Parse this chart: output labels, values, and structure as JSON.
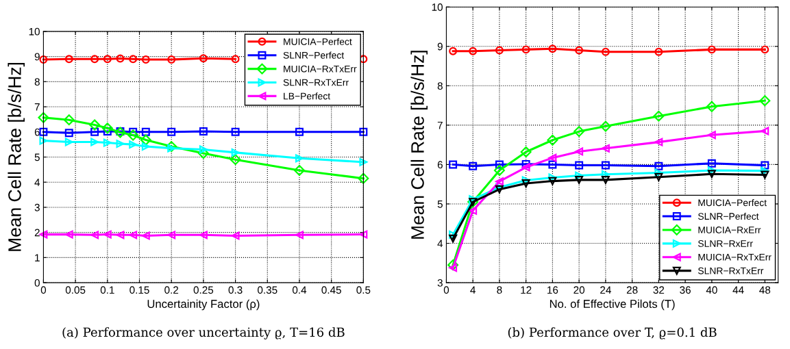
{
  "chart_data": [
    {
      "type": "line",
      "xlabel": "Uncertainity Factor (ρ)",
      "ylabel": "Mean Cell Rate [b/s/Hz]",
      "x": [
        0,
        0.04,
        0.08,
        0.1,
        0.12,
        0.14,
        0.16,
        0.2,
        0.25,
        0.3,
        0.4,
        0.5
      ],
      "xlim": [
        0,
        0.5
      ],
      "xticks": [
        0,
        0.05,
        0.1,
        0.15,
        0.2,
        0.25,
        0.3,
        0.35,
        0.4,
        0.45,
        0.5
      ],
      "ylim": [
        0,
        10
      ],
      "yticks": [
        0,
        1,
        2,
        3,
        4,
        5,
        6,
        7,
        8,
        9,
        10
      ],
      "grid": true,
      "legend": "top right",
      "annotations": [
        "(a) Performance over uncertainty ϱ, T=16 dB"
      ],
      "series": [
        {
          "name": "MUICIA−Perfect",
          "color": "#ff0000",
          "marker": "circle",
          "values": [
            8.88,
            8.9,
            8.9,
            8.9,
            8.92,
            8.9,
            8.88,
            8.88,
            8.93,
            8.9,
            null,
            8.9
          ]
        },
        {
          "name": "SLNR−Perfect",
          "color": "#0000ff",
          "marker": "square",
          "values": [
            6.0,
            5.96,
            6.0,
            6.02,
            6.02,
            6.0,
            6.0,
            6.0,
            6.02,
            6.0,
            6.0,
            6.0
          ]
        },
        {
          "name": "MUICIA−RxTxErr",
          "color": "#00ff00",
          "marker": "diamond",
          "values": [
            6.57,
            6.48,
            6.28,
            6.15,
            5.98,
            5.87,
            5.68,
            5.42,
            5.15,
            4.9,
            4.47,
            4.15
          ]
        },
        {
          "name": "SLNR−RxTxErr",
          "color": "#00ffff",
          "marker": "triangle_right",
          "values": [
            5.65,
            5.6,
            5.6,
            5.57,
            5.53,
            5.5,
            5.42,
            5.35,
            5.3,
            5.18,
            4.95,
            4.8
          ]
        },
        {
          "name": "LB−Perfect",
          "color": "#ff00ff",
          "marker": "triangle_left",
          "values": [
            1.92,
            1.92,
            1.9,
            1.92,
            1.9,
            1.9,
            1.87,
            1.9,
            1.9,
            1.87,
            1.9,
            1.92
          ]
        }
      ]
    },
    {
      "type": "line",
      "xlabel": "No. of Effective Pilots (T)",
      "ylabel": "Mean Cell Rate [b/s/Hz]",
      "x": [
        1,
        4,
        8,
        12,
        16,
        20,
        24,
        32,
        40,
        48
      ],
      "xlim": [
        0,
        50
      ],
      "xticks": [
        0,
        4,
        8,
        12,
        16,
        20,
        24,
        28,
        32,
        36,
        40,
        44,
        48
      ],
      "ylim": [
        3,
        10
      ],
      "yticks": [
        3,
        4,
        5,
        6,
        7,
        8,
        9,
        10
      ],
      "grid": true,
      "legend": "bottom right",
      "annotations": [
        "(b) Performance over T, ϱ=0.1 dB"
      ],
      "series": [
        {
          "name": "MUICIA−Perfect",
          "color": "#ff0000",
          "marker": "circle",
          "values": [
            8.88,
            8.88,
            8.9,
            8.92,
            8.94,
            8.9,
            8.86,
            8.86,
            8.92,
            8.92
          ]
        },
        {
          "name": "SLNR−Perfect",
          "color": "#0000ff",
          "marker": "square",
          "values": [
            6.0,
            5.96,
            6.0,
            6.01,
            6.0,
            5.98,
            5.98,
            5.96,
            6.03,
            5.98
          ]
        },
        {
          "name": "MUICIA−RxErr",
          "color": "#00ff00",
          "marker": "diamond",
          "values": [
            3.45,
            5.05,
            5.85,
            6.32,
            6.62,
            6.84,
            6.97,
            7.23,
            7.47,
            7.62
          ]
        },
        {
          "name": "SLNR−RxErr",
          "color": "#00ffff",
          "marker": "triangle_right",
          "values": [
            4.22,
            5.12,
            5.42,
            5.6,
            5.67,
            5.72,
            5.75,
            5.79,
            5.85,
            5.84
          ]
        },
        {
          "name": "MUICIA−RxTxErr",
          "color": "#ff00ff",
          "marker": "triangle_left",
          "values": [
            3.38,
            4.83,
            5.57,
            5.93,
            6.17,
            6.33,
            6.41,
            6.57,
            6.75,
            6.85
          ]
        },
        {
          "name": "SLNR−RxTxErr",
          "color": "#000000",
          "marker": "triangle_down",
          "values": [
            4.12,
            5.05,
            5.37,
            5.52,
            5.58,
            5.61,
            5.61,
            5.68,
            5.76,
            5.74
          ]
        }
      ]
    }
  ]
}
